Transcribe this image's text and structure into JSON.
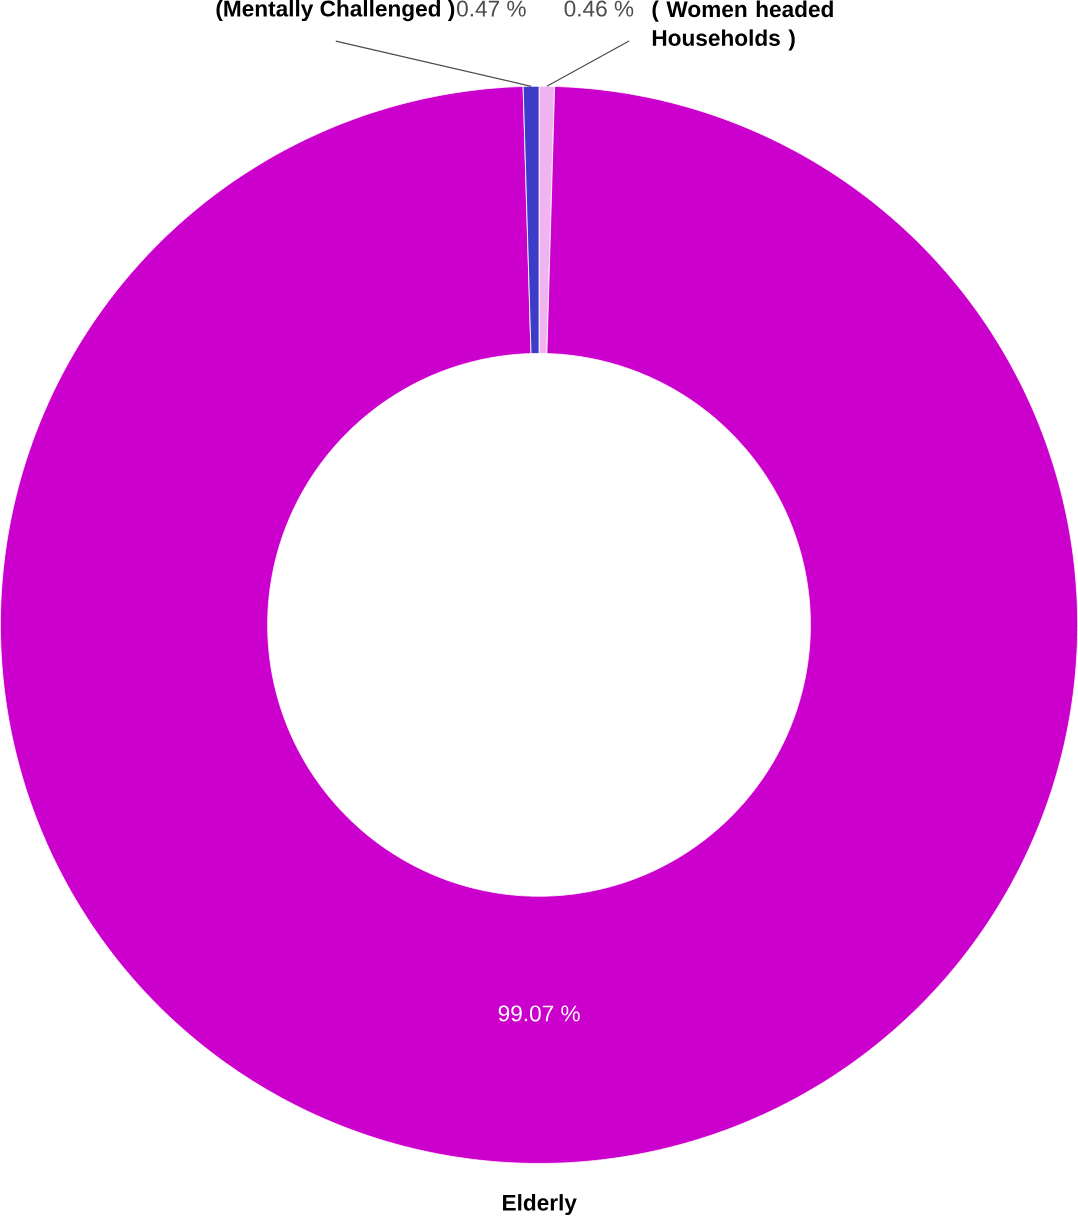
{
  "chart_data": {
    "type": "donut",
    "categories": [
      "( Women headed Households )",
      "Elderly",
      "(Mentally Challenged )"
    ],
    "values": [
      0.46,
      99.07,
      0.47
    ],
    "colors": [
      "#f0b4f0",
      "#cc00cc",
      "#3c3cc8"
    ],
    "value_labels": [
      "0.46 %",
      "99.07 %",
      "0.47 %"
    ]
  }
}
